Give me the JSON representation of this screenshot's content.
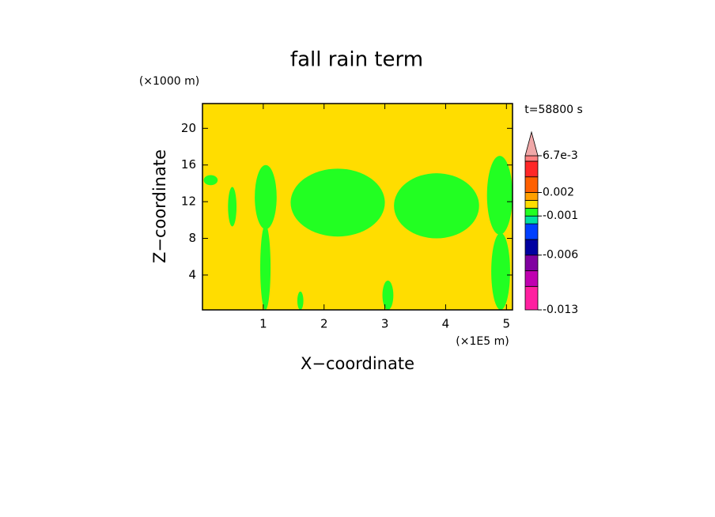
{
  "chart_data": {
    "type": "contour",
    "title": "fall rain term",
    "x_label": "X−coordinate",
    "y_label": "Z−coordinate",
    "x_unit": "(×1E5 m)",
    "y_unit": "(×1000 m)",
    "time_label": "t=58800 s",
    "xlim": [
      0,
      5.1
    ],
    "ylim": [
      0.2,
      22.7
    ],
    "xticks": [
      1,
      2,
      3,
      4,
      5
    ],
    "yticks": [
      4,
      8,
      12,
      16,
      20
    ],
    "background_color": "#ffdd00",
    "regions": [
      {
        "x": [
          0.02,
          0.25
        ],
        "z": [
          13.8,
          14.9
        ],
        "color": "#22ff22"
      },
      {
        "x": [
          0.42,
          0.56
        ],
        "z": [
          9.3,
          13.6
        ],
        "color": "#22ff22"
      },
      {
        "x": [
          0.86,
          1.22
        ],
        "z": [
          9.0,
          16.0
        ],
        "color": "#22ff22"
      },
      {
        "x": [
          0.95,
          1.12
        ],
        "z": [
          0.2,
          9.5
        ],
        "color": "#22ff22"
      },
      {
        "x": [
          1.45,
          3.0
        ],
        "z": [
          8.2,
          15.6
        ],
        "color": "#22ff22"
      },
      {
        "x": [
          3.15,
          4.55
        ],
        "z": [
          8.0,
          15.1
        ],
        "color": "#22ff22"
      },
      {
        "x": [
          4.68,
          5.1
        ],
        "z": [
          8.4,
          17.0
        ],
        "color": "#22ff22"
      },
      {
        "x": [
          4.75,
          5.06
        ],
        "z": [
          0.2,
          8.6
        ],
        "color": "#22ff22"
      },
      {
        "x": [
          2.96,
          3.14
        ],
        "z": [
          0.2,
          3.4
        ],
        "color": "#22ff22"
      },
      {
        "x": [
          1.56,
          1.66
        ],
        "z": [
          0.2,
          2.2
        ],
        "color": "#22ff22"
      }
    ],
    "colorbar": {
      "levels": [
        -0.013,
        -0.01,
        -0.008,
        -0.006,
        -0.004,
        -0.002,
        -0.001,
        0,
        0.001,
        0.002,
        0.004,
        0.006,
        0.0067
      ],
      "colors": [
        "#ff20a0",
        "#c000b0",
        "#8000a0",
        "#0000a0",
        "#0040ff",
        "#00e0a0",
        "#22ff22",
        "#ffdd00",
        "#ffa000",
        "#ff6000",
        "#ff2828",
        "#ff8080"
      ],
      "extend_color": "#f0a8a8",
      "ticks": [
        {
          "value": 0.0067,
          "label": "6.7e-3"
        },
        0.002,
        -0.001,
        -0.006,
        -0.013
      ]
    }
  }
}
